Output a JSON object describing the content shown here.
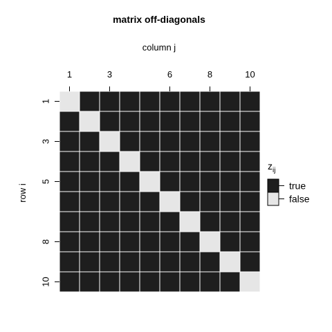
{
  "chart_data": {
    "type": "heatmap",
    "title": "matrix off-diagonals",
    "xlabel": "column j",
    "ylabel": "row i",
    "x_tick_labels": [
      "1",
      "3",
      "6",
      "8",
      "10"
    ],
    "x_tick_values": [
      1,
      3,
      6,
      8,
      10
    ],
    "y_tick_labels": [
      "1",
      "3",
      "5",
      "8",
      "10"
    ],
    "y_tick_values": [
      1,
      3,
      5,
      8,
      10
    ],
    "n_rows": 10,
    "n_cols": 10,
    "legend": {
      "title_main": "z",
      "title_sub": "ij",
      "position": "right",
      "entries": [
        {
          "label": "true",
          "color": "#1e1e1e"
        },
        {
          "label": "false",
          "color": "#e6e6e6"
        }
      ]
    },
    "colors": {
      "true": "#1e1e1e",
      "false": "#e6e6e6",
      "grid": "#ffffff"
    },
    "matrix": [
      [
        false,
        true,
        true,
        true,
        true,
        true,
        true,
        true,
        true,
        true
      ],
      [
        true,
        false,
        true,
        true,
        true,
        true,
        true,
        true,
        true,
        true
      ],
      [
        true,
        true,
        false,
        true,
        true,
        true,
        true,
        true,
        true,
        true
      ],
      [
        true,
        true,
        true,
        false,
        true,
        true,
        true,
        true,
        true,
        true
      ],
      [
        true,
        true,
        true,
        true,
        false,
        true,
        true,
        true,
        true,
        true
      ],
      [
        true,
        true,
        true,
        true,
        true,
        false,
        true,
        true,
        true,
        true
      ],
      [
        true,
        true,
        true,
        true,
        true,
        true,
        false,
        true,
        true,
        true
      ],
      [
        true,
        true,
        true,
        true,
        true,
        true,
        true,
        false,
        true,
        true
      ],
      [
        true,
        true,
        true,
        true,
        true,
        true,
        true,
        true,
        false,
        true
      ],
      [
        true,
        true,
        true,
        true,
        true,
        true,
        true,
        true,
        true,
        false
      ]
    ]
  }
}
